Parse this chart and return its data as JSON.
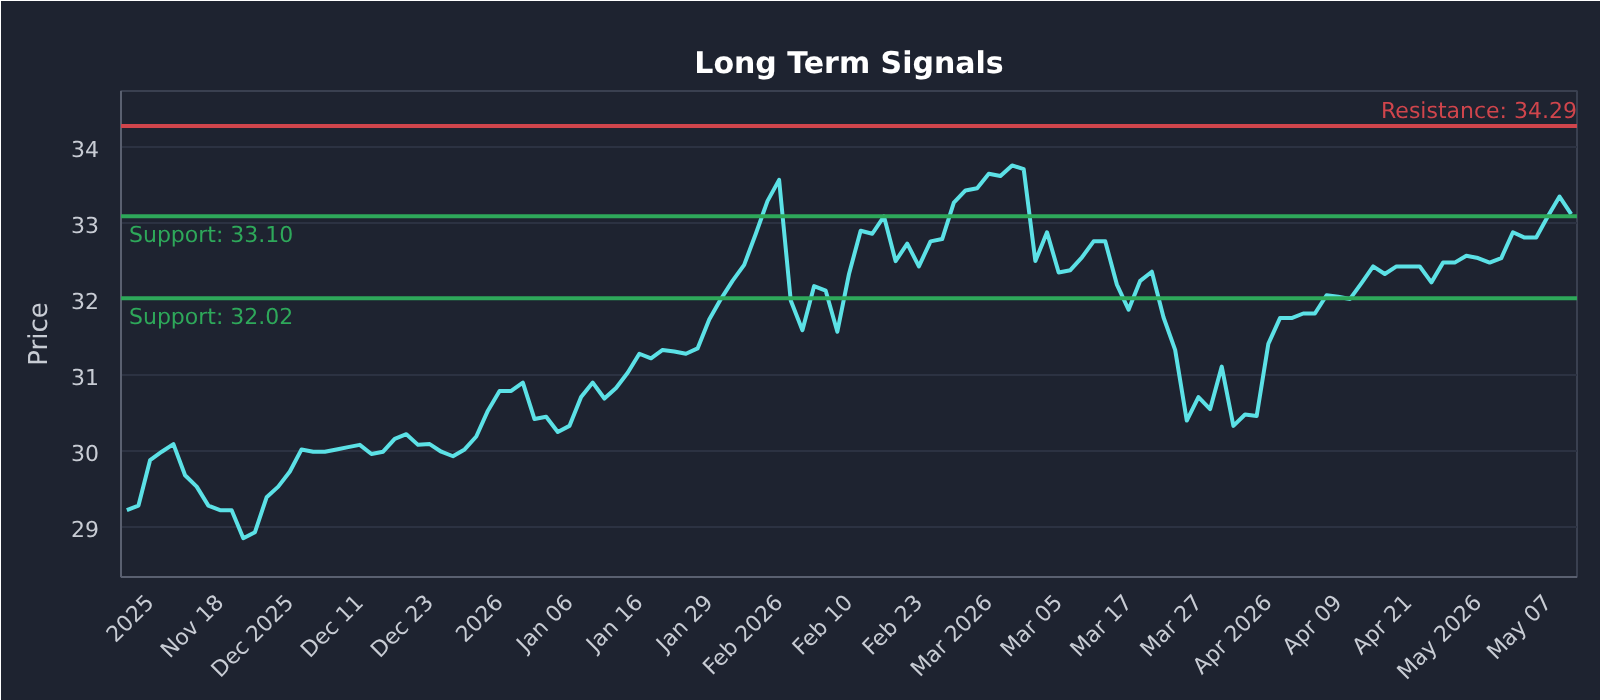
{
  "chart_data": {
    "type": "line",
    "title": "Long Term Signals",
    "ylabel": "Price",
    "categories": [
      null,
      null,
      "2025",
      null,
      null,
      null,
      null,
      null,
      "Nov 18",
      null,
      null,
      null,
      null,
      null,
      "Dec 2025",
      null,
      null,
      null,
      null,
      null,
      "Dec 11",
      null,
      null,
      null,
      null,
      null,
      "Dec 23",
      null,
      null,
      null,
      null,
      null,
      "2026",
      null,
      null,
      null,
      null,
      null,
      "Jan 06",
      null,
      null,
      null,
      null,
      null,
      "Jan 16",
      null,
      null,
      null,
      null,
      null,
      "Jan 29",
      null,
      null,
      null,
      null,
      null,
      "Feb 2026",
      null,
      null,
      null,
      null,
      null,
      "Feb 10",
      null,
      null,
      null,
      null,
      null,
      "Feb 23",
      null,
      null,
      null,
      null,
      null,
      "Mar 2026",
      null,
      null,
      null,
      null,
      null,
      "Mar 05",
      null,
      null,
      null,
      null,
      null,
      "Mar 17",
      null,
      null,
      null,
      null,
      null,
      "Mar 27",
      null,
      null,
      null,
      null,
      null,
      "Apr 2026",
      null,
      null,
      null,
      null,
      null,
      "Apr 09",
      null,
      null,
      null,
      null,
      null,
      "Apr 21",
      null,
      null,
      null,
      null,
      null,
      "May 2026",
      null,
      null,
      null,
      null,
      null,
      "May 07",
      null,
      null
    ],
    "series": [
      {
        "color": "#5ce1e6",
        "values": [
          29.23,
          29.29,
          29.89,
          30.0,
          30.1,
          29.69,
          29.54,
          29.29,
          29.23,
          29.23,
          28.86,
          28.94,
          29.4,
          29.54,
          29.74,
          30.03,
          30.0,
          30.0,
          30.03,
          30.06,
          30.09,
          29.97,
          30.0,
          30.17,
          30.23,
          30.09,
          30.1,
          30.0,
          29.94,
          30.03,
          30.2,
          30.54,
          30.8,
          30.8,
          30.91,
          30.43,
          30.46,
          30.26,
          30.34,
          30.72,
          30.91,
          30.7,
          30.84,
          31.04,
          31.29,
          31.23,
          31.34,
          31.32,
          31.29,
          31.36,
          31.74,
          32.01,
          32.25,
          32.46,
          32.87,
          33.3,
          33.58,
          31.99,
          31.6,
          32.18,
          32.12,
          31.58,
          32.34,
          32.91,
          32.87,
          33.1,
          32.51,
          32.74,
          32.44,
          32.77,
          32.8,
          33.28,
          33.44,
          33.47,
          33.66,
          33.63,
          33.77,
          33.72,
          32.51,
          32.89,
          32.36,
          32.39,
          32.56,
          32.77,
          32.77,
          32.2,
          31.87,
          32.25,
          32.37,
          31.77,
          31.34,
          30.41,
          30.72,
          30.56,
          31.12,
          30.34,
          30.49,
          30.47,
          31.42,
          31.76,
          31.76,
          31.82,
          31.82,
          32.06,
          32.04,
          32.01,
          32.22,
          32.44,
          32.34,
          32.44,
          32.44,
          32.44,
          32.23,
          32.49,
          32.49,
          32.58,
          32.55,
          32.49,
          32.55,
          32.89,
          32.82,
          32.82,
          33.1,
          33.36,
          33.13
        ]
      }
    ],
    "ylim": [
      28.35,
      34.75
    ],
    "yticks": [
      29,
      30,
      31,
      32,
      33,
      34
    ],
    "grid": "y",
    "marker": "none",
    "line_style": "solid",
    "ref_lines": [
      {
        "axis": "y",
        "value": 34.29,
        "label": "Resistance: 34.29",
        "color": "#d0454c"
      },
      {
        "axis": "y",
        "value": 33.1,
        "label": "Support: 33.10",
        "color": "#2ea85a"
      },
      {
        "axis": "y",
        "value": 32.02,
        "label": "Support: 32.02",
        "color": "#2ea85a"
      }
    ]
  }
}
